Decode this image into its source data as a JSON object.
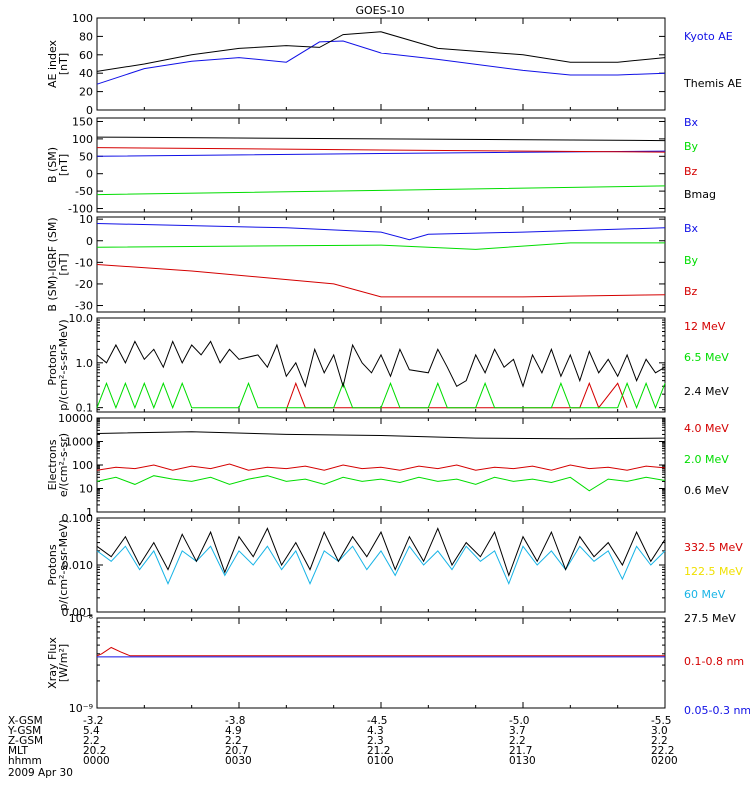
{
  "title": "GOES-10",
  "date": "2009 Apr 30",
  "colors": {
    "black": "#000000",
    "blue": "#1010e6",
    "green": "#00dd00",
    "red": "#d40000",
    "yellow": "#f0e000",
    "cyan": "#18b4e6"
  },
  "footer": {
    "row_labels": [
      "X-GSM",
      "Y-GSM",
      "Z-GSM",
      "MLT",
      "hhmm"
    ],
    "rows": [
      [
        "-3.2",
        "-3.8",
        "-4.5",
        "-5.0",
        "-5.5"
      ],
      [
        "5.4",
        "4.9",
        "4.3",
        "3.7",
        "3.0"
      ],
      [
        "2.2",
        "2.2",
        "2.3",
        "2.2",
        "2.2"
      ],
      [
        "20.2",
        "20.7",
        "21.2",
        "21.7",
        "22.2"
      ],
      [
        "0000",
        "0030",
        "0100",
        "0130",
        "0200"
      ]
    ]
  },
  "chart_data": [
    {
      "type": "line",
      "ylabel": "AE index\n[nT]",
      "ylim": [
        0,
        100
      ],
      "yticks": [
        0,
        20,
        40,
        60,
        80,
        100
      ],
      "ytick_labels": [
        "0",
        "20",
        "40",
        "60",
        "80",
        "100"
      ],
      "series": [
        {
          "name": "Kyoto AE",
          "color": "#1010e6",
          "x": [
            0,
            10,
            20,
            30,
            40,
            47,
            52,
            60,
            72,
            90,
            100,
            110,
            120
          ],
          "y": [
            28,
            45,
            53,
            57,
            52,
            74,
            75,
            62,
            55,
            43,
            38,
            38,
            40
          ]
        },
        {
          "name": "Themis AE",
          "color": "#000000",
          "x": [
            0,
            10,
            20,
            30,
            40,
            47,
            52,
            60,
            72,
            90,
            100,
            110,
            120
          ],
          "y": [
            42,
            50,
            60,
            67,
            70,
            68,
            82,
            85,
            67,
            60,
            52,
            52,
            57
          ]
        }
      ]
    },
    {
      "type": "line",
      "ylabel": "B (SM)\n[nT]",
      "ylim": [
        -110,
        160
      ],
      "yticks": [
        -100,
        -50,
        0,
        50,
        100,
        150
      ],
      "ytick_labels": [
        "-100",
        "-50",
        "0",
        "50",
        "100",
        "150"
      ],
      "series": [
        {
          "name": "Bx",
          "color": "#1010e6",
          "x": [
            0,
            60,
            120
          ],
          "y": [
            50,
            58,
            65
          ]
        },
        {
          "name": "By",
          "color": "#00dd00",
          "x": [
            0,
            60,
            120
          ],
          "y": [
            -60,
            -48,
            -35
          ]
        },
        {
          "name": "Bz",
          "color": "#d40000",
          "x": [
            0,
            60,
            120
          ],
          "y": [
            75,
            68,
            62
          ]
        },
        {
          "name": "Bmag",
          "color": "#000000",
          "x": [
            0,
            60,
            120
          ],
          "y": [
            105,
            100,
            95
          ]
        }
      ]
    },
    {
      "type": "line",
      "ylabel": "B (SM)-IGRF (SM)\n[nT]",
      "ylim": [
        -33,
        11
      ],
      "yticks": [
        -30,
        -20,
        -10,
        0,
        10
      ],
      "ytick_labels": [
        "-30",
        "-20",
        "-10",
        "0",
        "10"
      ],
      "series": [
        {
          "name": "Bx",
          "color": "#1010e6",
          "x": [
            0,
            40,
            60,
            66,
            70,
            90,
            120
          ],
          "y": [
            8,
            6,
            4,
            0.5,
            3,
            4,
            6
          ]
        },
        {
          "name": "By",
          "color": "#00dd00",
          "x": [
            0,
            60,
            80,
            100,
            120
          ],
          "y": [
            -3,
            -2,
            -4,
            -1,
            -1
          ]
        },
        {
          "name": "Bz",
          "color": "#d40000",
          "x": [
            0,
            20,
            50,
            60,
            70,
            90,
            120
          ],
          "y": [
            -11,
            -14,
            -20,
            -26,
            -26,
            -26,
            -25
          ]
        }
      ]
    },
    {
      "type": "line",
      "ylabel": "Protons\np/(cm²-s-sr-MeV)",
      "yscale": "log",
      "ylim": [
        0.08,
        10
      ],
      "yticks": [
        0.1,
        1,
        10
      ],
      "ytick_labels": [
        "0.1",
        "1.0",
        "10.0"
      ],
      "series": [
        {
          "name": "12 MeV",
          "color": "#d40000",
          "x": [
            40,
            42,
            44,
            102,
            104,
            106,
            110,
            112
          ],
          "y": [
            0.09,
            0.35,
            0.1,
            0.1,
            0.35,
            0.1,
            0.35,
            0.1
          ]
        },
        {
          "name": "6.5 MeV",
          "color": "#00dd00",
          "x": [
            0,
            2,
            4,
            6,
            8,
            10,
            12,
            14,
            16,
            18,
            20,
            30,
            32,
            34,
            50,
            52,
            54,
            60,
            62,
            64,
            70,
            72,
            74,
            80,
            82,
            84,
            96,
            98,
            100,
            110,
            112,
            114,
            116,
            118,
            120
          ],
          "y": [
            0.1,
            0.35,
            0.1,
            0.35,
            0.1,
            0.35,
            0.1,
            0.35,
            0.1,
            0.35,
            0.1,
            0.1,
            0.35,
            0.1,
            0.1,
            0.35,
            0.1,
            0.1,
            0.35,
            0.1,
            0.1,
            0.35,
            0.1,
            0.1,
            0.35,
            0.1,
            0.1,
            0.35,
            0.1,
            0.1,
            0.35,
            0.1,
            0.35,
            0.1,
            0.35
          ]
        },
        {
          "name": "2.4 MeV",
          "color": "#000000",
          "x": [
            0,
            2,
            4,
            6,
            8,
            10,
            12,
            14,
            16,
            18,
            20,
            22,
            24,
            26,
            28,
            30,
            34,
            36,
            38,
            40,
            42,
            44,
            46,
            48,
            50,
            52,
            54,
            56,
            58,
            60,
            62,
            64,
            66,
            70,
            72,
            74,
            76,
            78,
            80,
            82,
            84,
            86,
            88,
            90,
            92,
            94,
            96,
            98,
            100,
            102,
            104,
            106,
            108,
            110,
            112,
            114,
            116,
            118,
            120
          ],
          "y": [
            1.5,
            1,
            2.5,
            1,
            3,
            1.2,
            2,
            0.8,
            3,
            1,
            2.5,
            1.5,
            3,
            1,
            2,
            1.2,
            1.5,
            0.8,
            2.5,
            0.5,
            1,
            0.3,
            2,
            0.6,
            1.5,
            0.3,
            2.5,
            1,
            0.6,
            1.5,
            0.5,
            2,
            0.7,
            0.6,
            2,
            0.8,
            0.3,
            0.4,
            1.5,
            0.6,
            2,
            0.8,
            1.2,
            0.3,
            1.5,
            0.6,
            2,
            0.5,
            1.5,
            0.4,
            1.8,
            0.6,
            1.2,
            0.5,
            1.5,
            0.4,
            1.2,
            0.6,
            0.8
          ]
        }
      ]
    },
    {
      "type": "line",
      "ylabel": "Electrons\ne/(cm²-s-sr)",
      "yscale": "log",
      "ylim": [
        1,
        10000
      ],
      "yticks": [
        1,
        10,
        100,
        1000,
        10000
      ],
      "ytick_labels": [
        "1",
        "10",
        "100",
        "1000",
        "10000"
      ],
      "series": [
        {
          "name": "4.0 MeV",
          "color": "#d40000",
          "x": [
            0,
            4,
            8,
            12,
            16,
            20,
            24,
            28,
            32,
            36,
            40,
            44,
            48,
            52,
            56,
            60,
            64,
            68,
            72,
            76,
            80,
            84,
            88,
            92,
            96,
            100,
            104,
            108,
            112,
            116,
            120
          ],
          "y": [
            60,
            80,
            70,
            100,
            60,
            90,
            70,
            110,
            60,
            80,
            70,
            90,
            60,
            100,
            70,
            80,
            60,
            90,
            70,
            100,
            60,
            80,
            70,
            90,
            60,
            100,
            70,
            80,
            60,
            90,
            75
          ]
        },
        {
          "name": "2.0 MeV",
          "color": "#00dd00",
          "x": [
            0,
            4,
            8,
            12,
            16,
            20,
            24,
            28,
            32,
            36,
            40,
            44,
            48,
            52,
            56,
            60,
            64,
            68,
            72,
            76,
            80,
            84,
            88,
            92,
            96,
            100,
            104,
            108,
            112,
            116,
            120
          ],
          "y": [
            20,
            30,
            15,
            35,
            25,
            20,
            30,
            15,
            25,
            35,
            20,
            25,
            15,
            30,
            20,
            25,
            18,
            30,
            20,
            25,
            15,
            30,
            20,
            25,
            18,
            30,
            8,
            25,
            20,
            30,
            22
          ]
        },
        {
          "name": "0.6 MeV",
          "color": "#000000",
          "x": [
            0,
            20,
            40,
            60,
            80,
            100,
            120
          ],
          "y": [
            2200,
            2600,
            2000,
            1800,
            1400,
            1300,
            1400
          ]
        }
      ]
    },
    {
      "type": "line",
      "ylabel": "Protons\np/(cm²-s-sr-MeV)",
      "yscale": "log",
      "ylim": [
        0.001,
        0.1
      ],
      "yticks": [
        0.001,
        0.01,
        0.1
      ],
      "ytick_labels": [
        "0.001",
        "0.010",
        "0.100"
      ],
      "series": [
        {
          "name": "332.5 MeV",
          "color": "#d40000",
          "x": [],
          "y": []
        },
        {
          "name": "122.5 MeV",
          "color": "#f0e000",
          "x": [],
          "y": []
        },
        {
          "name": "60 MeV",
          "color": "#18b4e6",
          "x": [
            0,
            3,
            6,
            9,
            12,
            15,
            18,
            21,
            24,
            27,
            30,
            33,
            36,
            39,
            42,
            45,
            48,
            51,
            54,
            57,
            60,
            63,
            66,
            69,
            72,
            75,
            78,
            81,
            84,
            87,
            90,
            93,
            96,
            99,
            102,
            105,
            108,
            111,
            114,
            117,
            120
          ],
          "y": [
            0.02,
            0.012,
            0.025,
            0.008,
            0.02,
            0.004,
            0.02,
            0.012,
            0.025,
            0.006,
            0.02,
            0.01,
            0.025,
            0.008,
            0.02,
            0.004,
            0.02,
            0.012,
            0.025,
            0.008,
            0.02,
            0.006,
            0.025,
            0.01,
            0.02,
            0.008,
            0.025,
            0.012,
            0.02,
            0.004,
            0.025,
            0.01,
            0.02,
            0.008,
            0.025,
            0.012,
            0.02,
            0.005,
            0.025,
            0.01,
            0.02
          ]
        },
        {
          "name": "27.5 MeV",
          "color": "#000000",
          "x": [
            0,
            3,
            6,
            9,
            12,
            15,
            18,
            21,
            24,
            27,
            30,
            33,
            36,
            39,
            42,
            45,
            48,
            51,
            54,
            57,
            60,
            63,
            66,
            69,
            72,
            75,
            78,
            81,
            84,
            87,
            90,
            93,
            96,
            99,
            102,
            105,
            108,
            111,
            114,
            117,
            120
          ],
          "y": [
            0.025,
            0.015,
            0.04,
            0.01,
            0.03,
            0.008,
            0.045,
            0.012,
            0.05,
            0.007,
            0.04,
            0.015,
            0.06,
            0.01,
            0.03,
            0.008,
            0.05,
            0.012,
            0.04,
            0.015,
            0.05,
            0.008,
            0.04,
            0.012,
            0.06,
            0.01,
            0.03,
            0.015,
            0.05,
            0.006,
            0.04,
            0.012,
            0.05,
            0.008,
            0.04,
            0.015,
            0.03,
            0.01,
            0.05,
            0.012,
            0.035
          ]
        }
      ]
    },
    {
      "type": "line",
      "ylabel": "Xray Flux\n[W/m²]",
      "yscale": "log",
      "ylim": [
        1e-09,
        1e-08
      ],
      "yticks": [
        1e-09,
        1e-08
      ],
      "ytick_labels": [
        "10⁻⁹",
        "10⁻⁸"
      ],
      "series": [
        {
          "name": "0.1-0.8 nm",
          "color": "#d40000",
          "x": [
            0,
            1,
            3,
            5,
            7,
            120
          ],
          "y": [
            3.8e-09,
            4e-09,
            4.7e-09,
            4.2e-09,
            3.8e-09,
            3.8e-09
          ]
        },
        {
          "name": "0.05-0.3 nm",
          "color": "#1010e6",
          "x": [
            0,
            120
          ],
          "y": [
            3.7e-09,
            3.7e-09
          ]
        }
      ]
    }
  ]
}
